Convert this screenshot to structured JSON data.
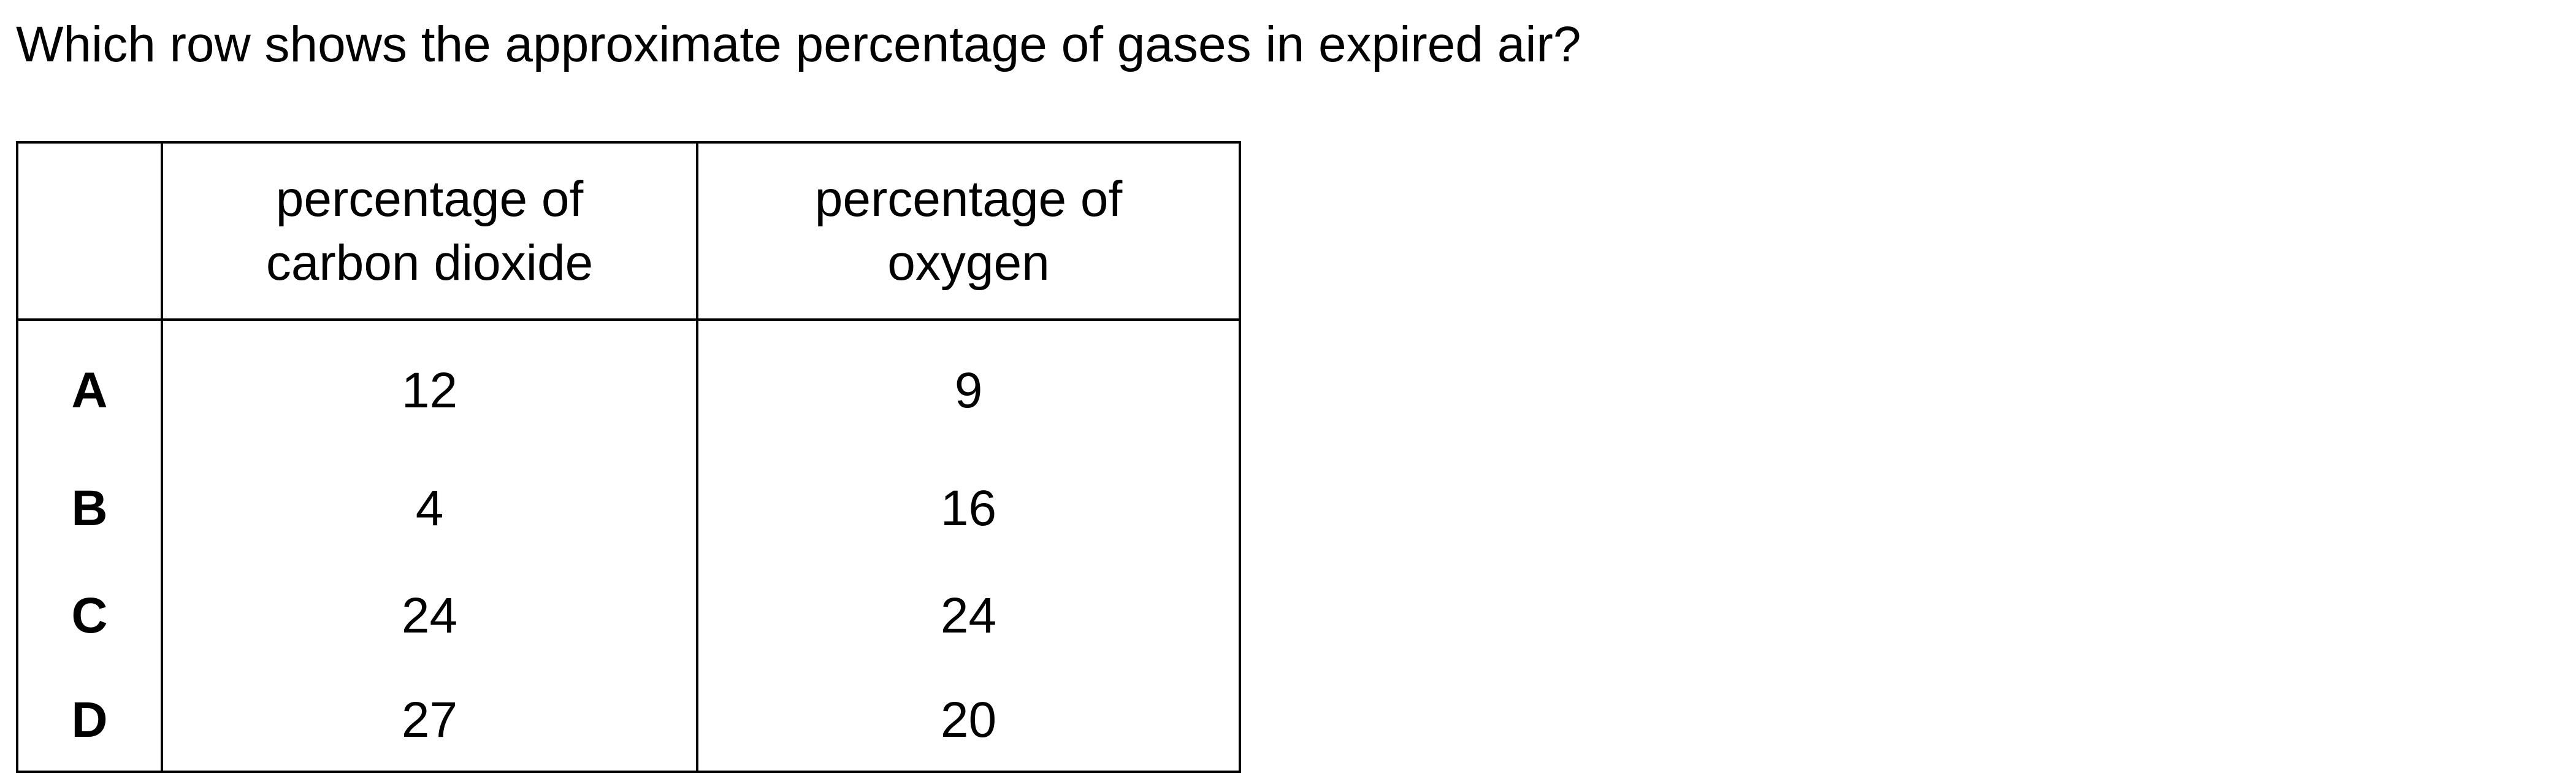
{
  "question": "Which row shows the approximate percentage of gases in expired air?",
  "table": {
    "headers": [
      "",
      "percentage of carbon dioxide",
      "percentage of oxygen"
    ],
    "header_lines": {
      "co2": [
        "percentage of",
        "carbon dioxide"
      ],
      "o2": [
        "percentage of",
        "oxygen"
      ]
    },
    "rows": [
      {
        "option": "A",
        "carbon_dioxide": "12",
        "oxygen": "9"
      },
      {
        "option": "B",
        "carbon_dioxide": "4",
        "oxygen": "16"
      },
      {
        "option": "C",
        "carbon_dioxide": "24",
        "oxygen": "24"
      },
      {
        "option": "D",
        "carbon_dioxide": "27",
        "oxygen": "20"
      }
    ]
  }
}
